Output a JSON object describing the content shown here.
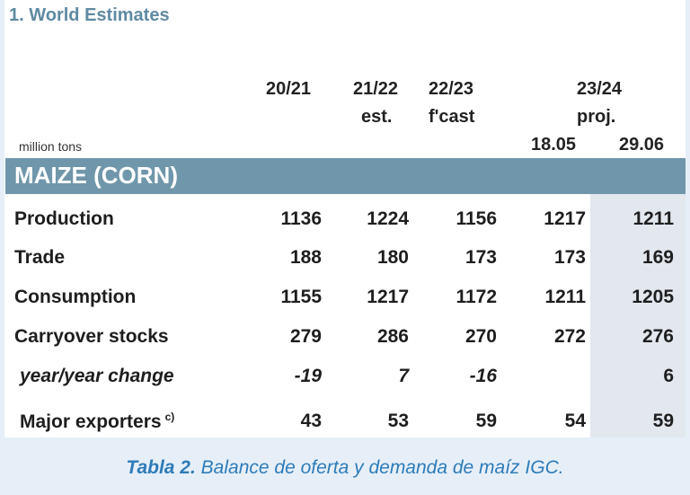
{
  "title": "1. World Estimates",
  "columns": [
    {
      "year": "20/21",
      "sub": ""
    },
    {
      "year": "21/22",
      "sub": "est."
    },
    {
      "year": "22/23",
      "sub": "f'cast"
    }
  ],
  "proj_group": {
    "year": "23/24",
    "sub": "proj."
  },
  "proj_dates": [
    "18.05",
    "29.06"
  ],
  "unit": "million tons",
  "section": "MAIZE (CORN)",
  "rows": [
    {
      "label": "Production",
      "values": [
        "1136",
        "1224",
        "1156",
        "1217",
        "1211"
      ]
    },
    {
      "label": "Trade",
      "values": [
        "188",
        "180",
        "173",
        "173",
        "169"
      ]
    },
    {
      "label": "Consumption",
      "values": [
        "1155",
        "1217",
        "1172",
        "1211",
        "1205"
      ]
    },
    {
      "label": "Carryover stocks",
      "values": [
        "279",
        "286",
        "270",
        "272",
        "276"
      ]
    },
    {
      "label": "year/year change",
      "values": [
        "-19",
        "7",
        "-16",
        "",
        "6"
      ]
    },
    {
      "label": "Major exporters",
      "note": "c)",
      "values": [
        "43",
        "53",
        "59",
        "54",
        "59"
      ]
    }
  ],
  "caption": {
    "bold": "Tabla 2.",
    "text": "Balance de oferta y demanda de maíz IGC."
  },
  "colors": {
    "title": "#5f8aa2",
    "band": "#6f96aa",
    "shade": "#e3e7ee",
    "caption": "#2d7bb8",
    "background": "#e6eff8"
  }
}
